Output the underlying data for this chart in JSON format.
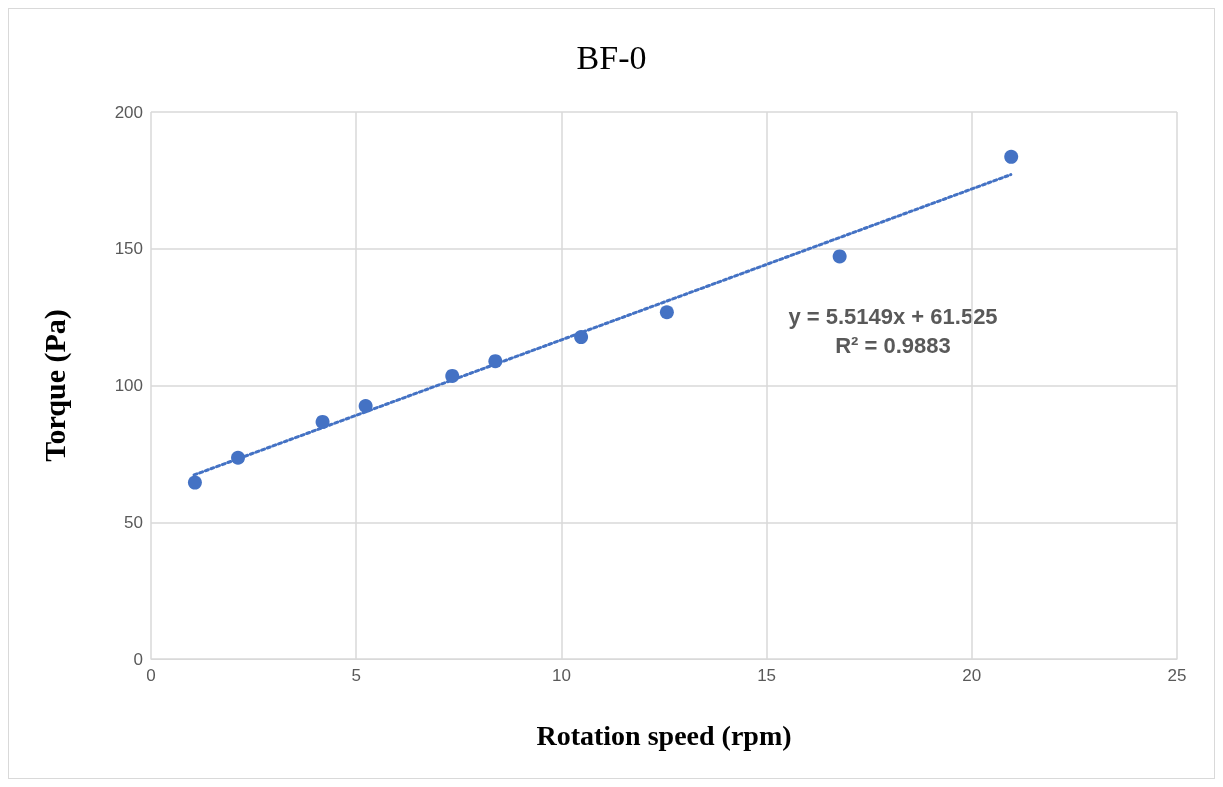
{
  "chart_data": {
    "type": "scatter",
    "title": "BF-0",
    "xlabel": "Rotation speed (rpm)",
    "ylabel": "Torque (Pa)",
    "xlim": [
      0,
      25
    ],
    "xticks": [
      0,
      5,
      10,
      15,
      20,
      25
    ],
    "ylim": [
      0,
      200
    ],
    "yticks": [
      0,
      50,
      100,
      150,
      200
    ],
    "grid": true,
    "series": [
      {
        "color": "#4472c4",
        "marker": "circle",
        "x": [
          1.07,
          2.12,
          4.18,
          5.23,
          7.34,
          8.39,
          10.48,
          12.57,
          16.78,
          20.96
        ],
        "values": [
          64.5,
          73.6,
          86.7,
          92.5,
          103.5,
          108.9,
          117.7,
          126.8,
          147.2,
          183.6
        ]
      },
      {
        "type": "line",
        "color": "#4472c4",
        "marker": "none",
        "line_style": "dotted",
        "x": [
          1.05,
          20.95
        ],
        "values": [
          67.3,
          177.1
        ]
      }
    ],
    "annotations": [
      "y = 5.5149x + 61.525",
      "R² = 0.9883"
    ]
  }
}
